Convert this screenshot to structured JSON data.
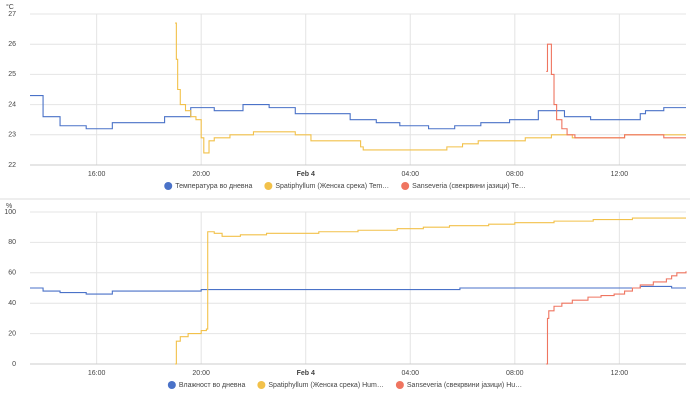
{
  "chart_data": [
    {
      "type": "line",
      "line_shape": "step",
      "y_label": "°C",
      "grid": true,
      "xlim": [
        13.45,
        38.55
      ],
      "ylim": [
        22,
        27
      ],
      "yticks": [
        22,
        23,
        24,
        25,
        26,
        27
      ],
      "xticks": [
        {
          "value": 16,
          "label": "16:00"
        },
        {
          "value": 20,
          "label": "20:00"
        },
        {
          "value": 24,
          "label": "Feb 4"
        },
        {
          "value": 28,
          "label": "04:00"
        },
        {
          "value": 32,
          "label": "08:00"
        },
        {
          "value": 36,
          "label": "12:00"
        }
      ],
      "series": [
        {
          "name": "Температура во дневна",
          "color": "#4a72c8",
          "x": [
            13.45,
            13.95,
            14.6,
            15.6,
            16.6,
            18.6,
            19.6,
            20.5,
            21.6,
            22.6,
            23.6,
            25.7,
            26.7,
            27.6,
            28.7,
            29.7,
            30.7,
            31.8,
            32.9,
            33.9,
            34.9,
            36.8,
            37.0,
            37.7,
            38.55
          ],
          "values": [
            24.3,
            23.6,
            23.3,
            23.2,
            23.4,
            23.6,
            23.9,
            23.8,
            24.0,
            23.9,
            23.7,
            23.5,
            23.4,
            23.3,
            23.2,
            23.3,
            23.4,
            23.5,
            23.8,
            23.6,
            23.5,
            23.7,
            23.8,
            23.9,
            23.9
          ]
        },
        {
          "name": "Spatiphyllum (Женска срека) Tem…",
          "color": "#f2c14a",
          "x": [
            19.0,
            19.05,
            19.1,
            19.2,
            19.4,
            19.6,
            19.8,
            20.0,
            20.1,
            20.3,
            20.5,
            21.1,
            22.0,
            23.6,
            24.2,
            26.1,
            26.2,
            28.6,
            29.4,
            30.0,
            30.6,
            32.4,
            33.4,
            34.2,
            36.2,
            37.6,
            38.55
          ],
          "values": [
            26.7,
            25.5,
            24.5,
            24.0,
            23.8,
            23.6,
            23.5,
            22.9,
            22.4,
            22.8,
            22.9,
            23.0,
            23.1,
            23.0,
            22.8,
            22.6,
            22.5,
            22.5,
            22.6,
            22.7,
            22.8,
            22.9,
            23.0,
            22.9,
            23.0,
            23.0,
            23.0
          ]
        },
        {
          "name": "Sanseveria (свекрвини јазици) Te…",
          "color": "#ef7560",
          "x": [
            33.2,
            33.25,
            33.35,
            33.4,
            33.5,
            33.6,
            33.8,
            34.0,
            34.3,
            36.2,
            37.7,
            38.55
          ],
          "values": [
            25.1,
            26.0,
            26.0,
            25.0,
            24.0,
            23.5,
            23.2,
            23.0,
            22.9,
            23.0,
            22.9,
            22.9
          ]
        }
      ]
    },
    {
      "type": "line",
      "line_shape": "step",
      "y_label": "%",
      "grid": true,
      "xlim": [
        13.45,
        38.55
      ],
      "ylim": [
        0,
        100
      ],
      "yticks": [
        0,
        20,
        40,
        60,
        80,
        100
      ],
      "xticks": [
        {
          "value": 16,
          "label": "16:00"
        },
        {
          "value": 20,
          "label": "20:00"
        },
        {
          "value": 24,
          "label": "Feb 4"
        },
        {
          "value": 28,
          "label": "04:00"
        },
        {
          "value": 32,
          "label": "08:00"
        },
        {
          "value": 36,
          "label": "12:00"
        }
      ],
      "series": [
        {
          "name": "Влажност во дневна",
          "color": "#4a72c8",
          "x": [
            13.45,
            13.95,
            14.6,
            15.6,
            16.6,
            20.0,
            25.7,
            29.9,
            36.8,
            38.0,
            38.55
          ],
          "values": [
            50,
            48,
            47,
            46,
            48,
            49,
            49,
            50,
            51,
            50,
            50
          ]
        },
        {
          "name": "Spatiphyllum (Женска срека) Hum…",
          "color": "#f2c14a",
          "x": [
            19.0,
            19.05,
            19.2,
            19.5,
            20.0,
            20.2,
            20.25,
            20.5,
            20.8,
            21.5,
            22.5,
            24.5,
            26.0,
            27.5,
            28.5,
            29.5,
            31.0,
            32.0,
            33.5,
            35.0,
            36.5,
            38.55
          ],
          "values": [
            0,
            15,
            18,
            20,
            22,
            23,
            87,
            86,
            84,
            85,
            86,
            87,
            88,
            89,
            90,
            91,
            92,
            93,
            94,
            95,
            96,
            96
          ]
        },
        {
          "name": "Sanseveria (свекрвини јазици) Hu…",
          "color": "#ef7560",
          "x": [
            33.2,
            33.25,
            33.3,
            33.5,
            33.8,
            34.2,
            34.8,
            35.3,
            35.8,
            36.2,
            36.5,
            36.8,
            37.3,
            37.8,
            38.0,
            38.2,
            38.55
          ],
          "values": [
            0,
            30,
            35,
            38,
            40,
            42,
            44,
            45,
            46,
            48,
            50,
            52,
            54,
            56,
            58,
            60,
            61
          ]
        }
      ]
    }
  ]
}
